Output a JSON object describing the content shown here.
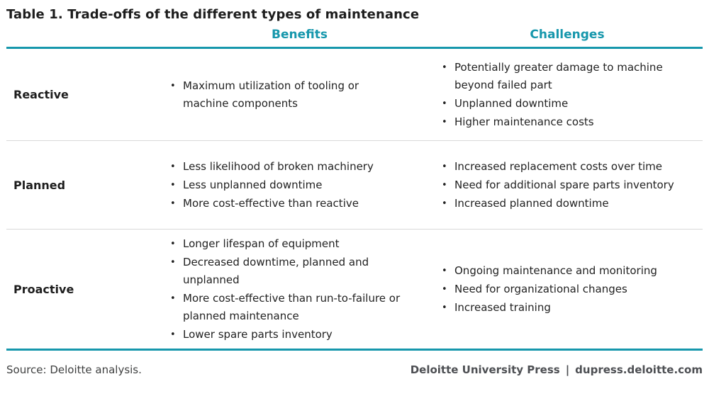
{
  "title": "Table 1. Trade-offs of the different types of maintenance",
  "columns": {
    "benefits": "Benefits",
    "challenges": "Challenges"
  },
  "rows": [
    {
      "label": "Reactive",
      "benefits": [
        "Maximum utilization of tooling or machine components"
      ],
      "challenges": [
        "Potentially greater damage to machine beyond failed part",
        "Unplanned downtime",
        "Higher maintenance costs"
      ]
    },
    {
      "label": "Planned",
      "benefits": [
        "Less likelihood of broken machinery",
        "Less unplanned downtime",
        "More cost-effective than reactive"
      ],
      "challenges": [
        "Increased replacement costs over time",
        "Need for additional spare parts inventory",
        "Increased planned downtime"
      ]
    },
    {
      "label": "Proactive",
      "benefits": [
        "Longer lifespan of equipment",
        "Decreased downtime, planned and unplanned",
        "More cost-effective than run-to-failure or planned maintenance",
        "Lower spare parts inventory"
      ],
      "challenges": [
        "Ongoing maintenance and monitoring",
        "Need for organizational changes",
        "Increased training"
      ]
    }
  ],
  "footer": {
    "source": "Source: Deloitte analysis.",
    "brand": "Deloitte University Press",
    "separator": "|",
    "site": "dupress.deloitte.com"
  },
  "colors": {
    "accent_teal": "#1697ac",
    "divider_gray": "#d9d9d9",
    "body_text": "#222222",
    "footer_gray": "#4d4f53"
  }
}
